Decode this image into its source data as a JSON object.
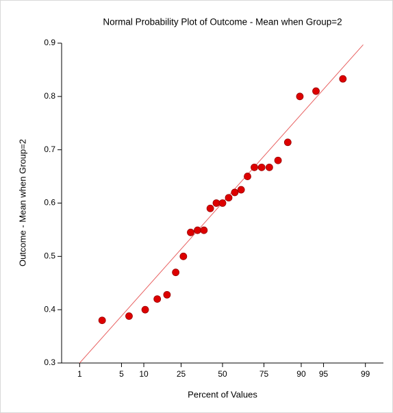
{
  "chart_data": {
    "type": "scatter",
    "title": "Normal Probability Plot of Outcome - Mean when Group=2",
    "x_label": "Percent of Values",
    "y_label": "Outcome - Mean when Group=2",
    "x_scale": "probit",
    "xlim": [
      0.44,
      99.56
    ],
    "ylim": [
      0.3,
      0.9
    ],
    "xticks": [
      1,
      5,
      10,
      25,
      50,
      75,
      90,
      95,
      99
    ],
    "yticks": [
      {
        "value": 0.3,
        "label": "0.3"
      },
      {
        "value": 0.4,
        "label": "0.4"
      },
      {
        "value": 0.5,
        "label": "0.5"
      },
      {
        "value": 0.6,
        "label": "0.6"
      },
      {
        "value": 0.7,
        "label": "0.7"
      },
      {
        "value": 0.8,
        "label": "0.8"
      },
      {
        "value": 0.9,
        "label": "0.9"
      }
    ],
    "color": "#dd0000",
    "x": [
      2.5,
      6.4,
      10.4,
      14.4,
      18.3,
      22.3,
      26.2,
      30.2,
      34.2,
      38.1,
      42.1,
      46.0,
      50.0,
      54.0,
      57.9,
      61.9,
      65.8,
      69.8,
      73.8,
      77.7,
      81.7,
      85.6,
      89.6,
      93.6,
      97.5
    ],
    "y": [
      0.38,
      0.388,
      0.4,
      0.42,
      0.428,
      0.47,
      0.5,
      0.545,
      0.549,
      0.549,
      0.59,
      0.6,
      0.6,
      0.61,
      0.62,
      0.625,
      0.65,
      0.667,
      0.667,
      0.667,
      0.68,
      0.714,
      0.8,
      0.81,
      0.833
    ],
    "reference_line": {
      "color": "#e86060",
      "x": [
        1,
        98.9
      ],
      "y": [
        0.3,
        0.897
      ]
    }
  }
}
